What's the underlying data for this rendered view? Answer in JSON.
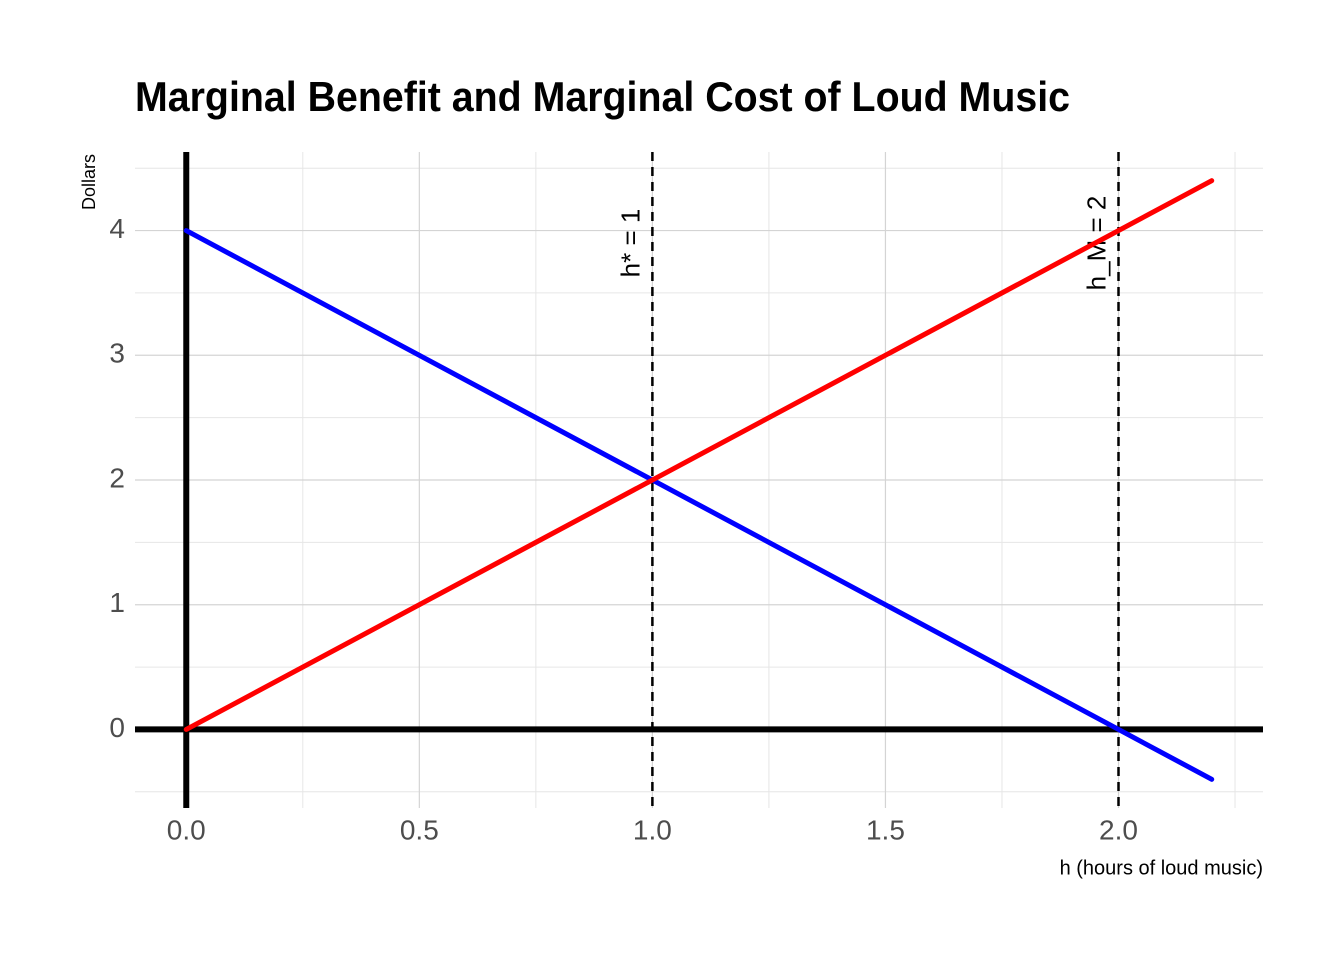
{
  "chart_data": {
    "type": "line",
    "title": "Marginal Benefit and Marginal Cost of Loud Music",
    "x_label": "h (hours of loud music)",
    "y_label": "Dollars",
    "x": [
      0,
      2.2
    ],
    "series": [
      {
        "color": "#0000ff",
        "values": [
          4,
          -0.4
        ]
      },
      {
        "color": "#ff0000",
        "values": [
          0,
          4.4
        ]
      }
    ],
    "xlim": [
      -0.11,
      2.31
    ],
    "ylim": [
      -0.63,
      4.63
    ],
    "xticks": [
      {
        "value": 0,
        "label": "0.0"
      },
      0.5,
      {
        "value": 1,
        "label": "1.0"
      },
      1.5,
      {
        "value": 2,
        "label": "2.0"
      }
    ],
    "yticks": [
      0,
      1,
      2,
      3,
      4
    ],
    "grid": true,
    "minor_grid": true,
    "axis_lines": {
      "x": 0,
      "y": 0
    },
    "vlines": [
      {
        "x": 1,
        "label": "h* = 1"
      },
      {
        "x": 2,
        "label": "h_M = 2"
      }
    ]
  }
}
